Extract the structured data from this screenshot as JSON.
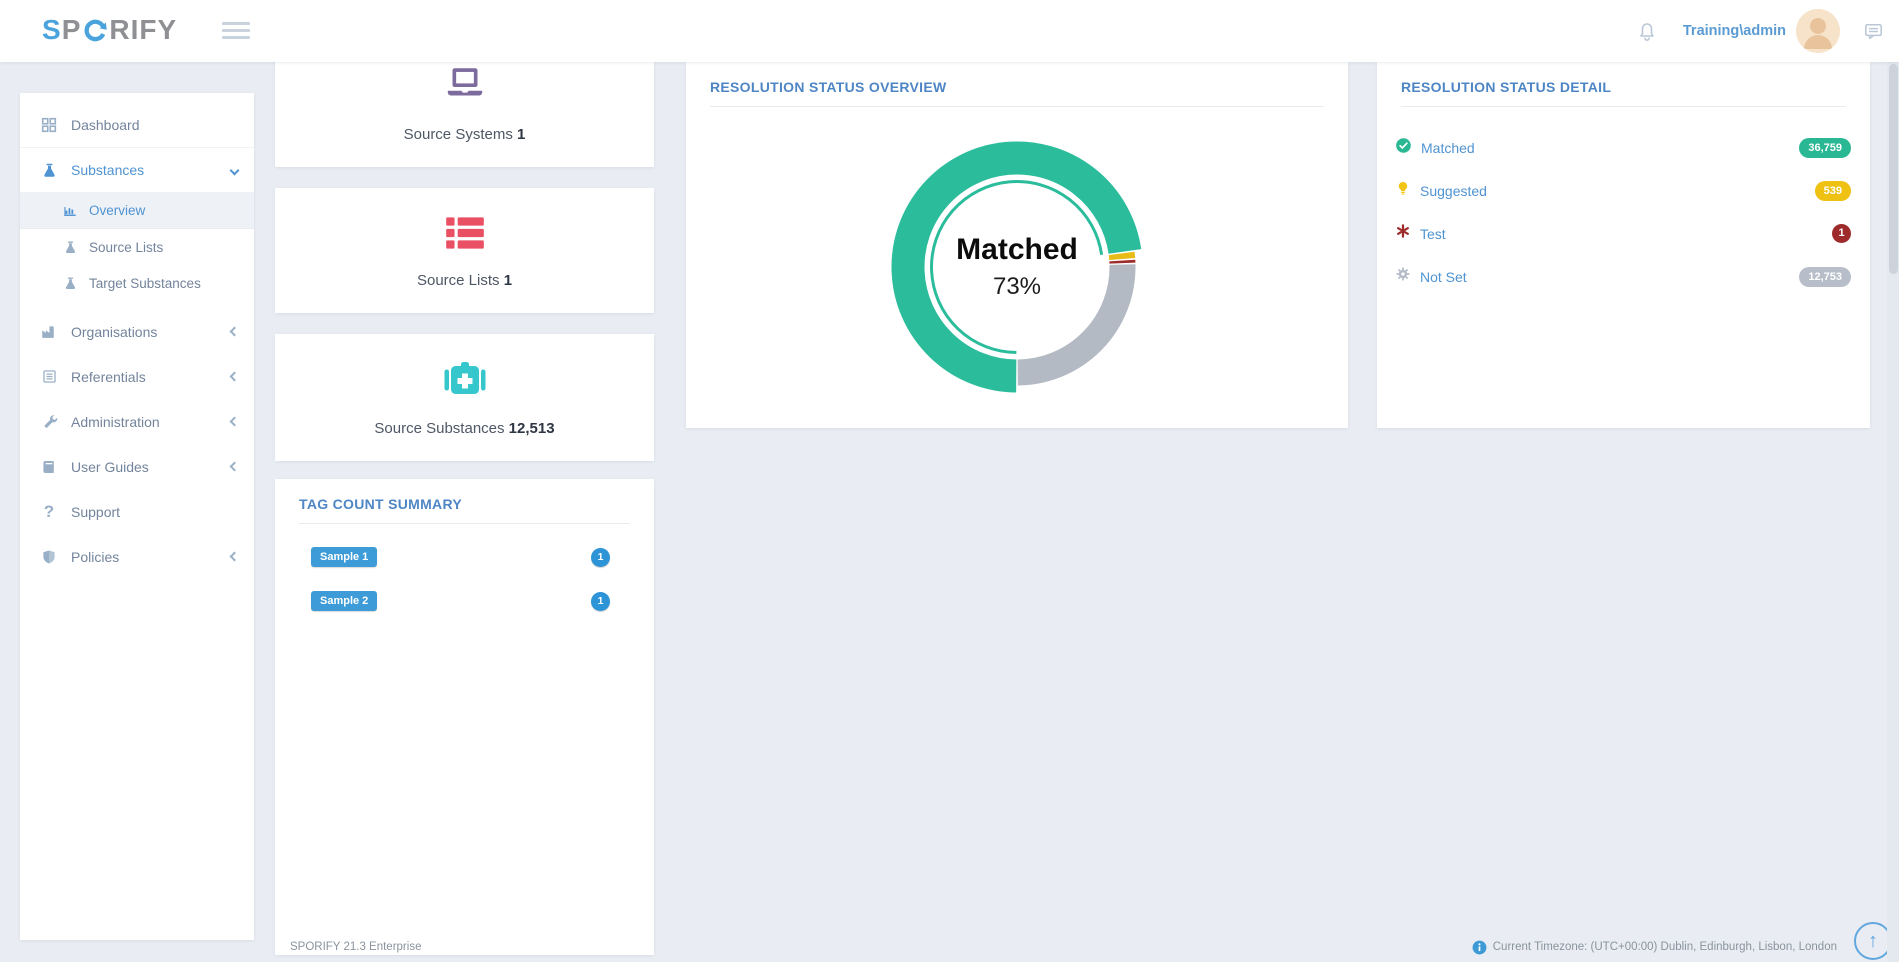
{
  "header": {
    "brand": "SPORIFY",
    "brand_s": "S",
    "brand_p": "P",
    "brand_rify": "RIFY",
    "user": "Training\\admin"
  },
  "sidebar": {
    "items": [
      {
        "label": "Dashboard",
        "icon": "dashboard-grid"
      },
      {
        "label": "Substances",
        "icon": "flask",
        "active": true,
        "expanded": true,
        "children": [
          {
            "label": "Overview",
            "icon": "bar-chart",
            "active": true
          },
          {
            "label": "Source Lists",
            "icon": "flask"
          },
          {
            "label": "Target Substances",
            "icon": "flask"
          }
        ]
      },
      {
        "label": "Organisations",
        "icon": "factory",
        "collapsed": true
      },
      {
        "label": "Referentials",
        "icon": "list",
        "collapsed": true
      },
      {
        "label": "Administration",
        "icon": "wrench",
        "collapsed": true
      },
      {
        "label": "User Guides",
        "icon": "book",
        "collapsed": true
      },
      {
        "label": "Support",
        "icon": "question"
      },
      {
        "label": "Policies",
        "icon": "shield",
        "collapsed": true
      }
    ]
  },
  "cards": [
    {
      "label": "Source Systems",
      "value": "1",
      "icon": "laptop",
      "icon_color": "#7d6b9d"
    },
    {
      "label": "Source Lists",
      "value": "1",
      "icon": "list-rows",
      "icon_color": "#ea5064"
    },
    {
      "label": "Source Substances",
      "value": "12,513",
      "icon": "first-aid-kit",
      "icon_color": "#35c7cb"
    }
  ],
  "tags": {
    "title": "TAG COUNT SUMMARY",
    "rows": [
      {
        "label": "Sample 1",
        "count": "1"
      },
      {
        "label": "Sample 2",
        "count": "1"
      }
    ]
  },
  "chart_data": {
    "type": "pie",
    "donut": true,
    "title": "RESOLUTION STATUS OVERVIEW",
    "center_label": "Matched",
    "center_value": "73%",
    "legend_position": "none",
    "start_angle": "bottom-clockwise",
    "segments": [
      {
        "label": "Matched",
        "value": 36759,
        "pct": 73.4,
        "color": "#2bbc9c",
        "selected": true
      },
      {
        "label": "Suggested",
        "value": 539,
        "pct": 1.1,
        "color": "#e9bb16"
      },
      {
        "label": "Test",
        "value": 1,
        "pct": 0.0,
        "color": "#9e2b2b"
      },
      {
        "label": "Not Set",
        "value": 12753,
        "pct": 25.5,
        "color": "#b3bac4"
      }
    ]
  },
  "detail": {
    "title": "RESOLUTION STATUS DETAIL",
    "rows": [
      {
        "label": "Matched",
        "value": "36,759",
        "color": "#2ab793",
        "icon": "check-circle"
      },
      {
        "label": "Suggested",
        "value": "539",
        "color": "#eec113",
        "icon": "lightbulb"
      },
      {
        "label": "Test",
        "value": "1",
        "color": "#9e2b2b",
        "icon": "asterisk"
      },
      {
        "label": "Not Set",
        "value": "12,753",
        "color": "#b7bec9",
        "icon": "gear"
      }
    ]
  },
  "footer": {
    "version": "SPORIFY 21.3 Enterprise",
    "timezone": "Current Timezone: (UTC+00:00) Dublin, Edinburgh, Lisbon, London",
    "back_to_top": "↑"
  },
  "colors": {
    "accent_blue": "#4f93d2",
    "panel_title_blue": "#4e86c5",
    "tag_blue": "#3d9bd8",
    "page_bg": "#e9edf3"
  }
}
